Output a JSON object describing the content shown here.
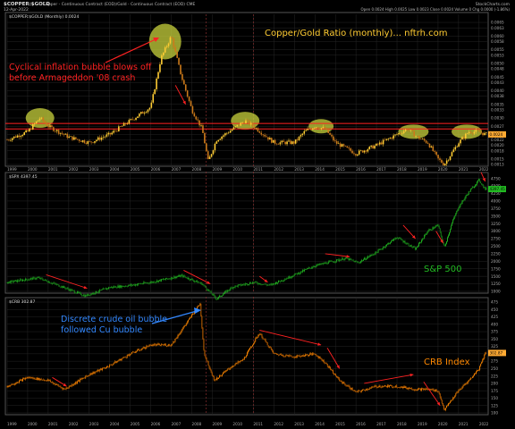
{
  "header": {
    "symbol": "$COPPER:$GOLD",
    "description": "Copper - Continuous Contract (EOD)/Gold - Continuous Contract (EOD) CME",
    "date": "12-Apr-2022",
    "ohlc": "Open 0.0024  High 0.0025  Low 0.0023  Close 0.0024  Volume 0  Chg 0.0000 (-1.86%)",
    "brand": "StockCharts.com"
  },
  "chart_data": [
    {
      "type": "line",
      "legend": "$COPPER:$GOLD (Monthly) 0.0024",
      "title": "Copper/Gold Ratio (monthly)... nftrh.com",
      "ylim": [
        0.0013,
        0.0066
      ],
      "yticks": [
        "0.0065",
        "0.0063",
        "0.0060",
        "0.0058",
        "0.0055",
        "0.0053",
        "0.0050",
        "0.0048",
        "0.0045",
        "0.0043",
        "0.0040",
        "0.0038",
        "0.0035",
        "0.0033",
        "0.0030",
        "0.0027",
        "0.0024",
        "0.0022",
        "0.0020",
        "0.0018",
        "0.0015",
        "0.0013"
      ],
      "last_value": "0.0024",
      "x": [
        1999,
        2000,
        2000.6,
        2001,
        2002,
        2003,
        2004,
        2005,
        2006,
        2006.5,
        2007,
        2007.5,
        2008,
        2008.5,
        2008.8,
        2009.2,
        2010,
        2010.6,
        2011,
        2011.5,
        2012,
        2013,
        2013.5,
        2014,
        2014.5,
        2015,
        2016,
        2017,
        2018,
        2018.5,
        2019,
        2019.5,
        2020,
        2020.3,
        2021,
        2021.5,
        2022,
        2022.3
      ],
      "values": [
        0.0022,
        0.0025,
        0.003,
        0.0027,
        0.0023,
        0.0021,
        0.0024,
        0.0029,
        0.0034,
        0.0052,
        0.006,
        0.0045,
        0.0033,
        0.0026,
        0.0014,
        0.0022,
        0.0026,
        0.0029,
        0.0027,
        0.0024,
        0.0021,
        0.0021,
        0.0025,
        0.0027,
        0.0026,
        0.0021,
        0.0017,
        0.002,
        0.0024,
        0.0026,
        0.0023,
        0.0021,
        0.0015,
        0.0013,
        0.0021,
        0.0025,
        0.0025,
        0.0024
      ],
      "annotations": [
        "Cyclical inflation bubble blows off before Armageddon '08 crash"
      ]
    },
    {
      "type": "line",
      "legend": "$SPX 4397.45",
      "title": "S&P 500",
      "ylim": [
        1000,
        4800
      ],
      "yticks": [
        "4750",
        "4500",
        "4250",
        "4000",
        "3750",
        "3500",
        "3250",
        "3000",
        "2750",
        "2500",
        "2250",
        "2000",
        "1750",
        "1500",
        "1250",
        "1000"
      ],
      "last_value": "4397.45",
      "x": [
        1999,
        2000.5,
        2001.5,
        2002.8,
        2004,
        2005,
        2006,
        2007.5,
        2008.5,
        2009.2,
        2010,
        2011,
        2011.8,
        2012.5,
        2014,
        2015.5,
        2016.1,
        2017,
        2018,
        2018.9,
        2019.5,
        2020,
        2020.3,
        2020.7,
        2021,
        2021.5,
        2022,
        2022.3
      ],
      "values": [
        1300,
        1450,
        1200,
        850,
        1130,
        1200,
        1300,
        1520,
        1250,
        750,
        1150,
        1300,
        1200,
        1400,
        1850,
        2100,
        1950,
        2300,
        2800,
        2400,
        3000,
        3200,
        2450,
        3300,
        3800,
        4300,
        4700,
        4397
      ]
    },
    {
      "type": "line",
      "legend": "$CRB 302.87",
      "title": "CRB Index",
      "ylim": [
        100,
        475
      ],
      "yticks": [
        "475",
        "450",
        "425",
        "400",
        "375",
        "350",
        "325",
        "300",
        "275",
        "250",
        "225",
        "200",
        "175",
        "150",
        "125",
        "100"
      ],
      "last_value": "302.87",
      "x": [
        1999,
        2000,
        2001,
        2001.8,
        2003,
        2004,
        2005,
        2006,
        2007,
        2008.4,
        2008.6,
        2009.1,
        2010,
        2010.5,
        2011.3,
        2012,
        2013,
        2014,
        2014.5,
        2015.2,
        2016,
        2017,
        2018,
        2018.9,
        2019.5,
        2020,
        2020.3,
        2021,
        2021.5,
        2022,
        2022.3
      ],
      "values": [
        190,
        220,
        210,
        180,
        230,
        260,
        300,
        330,
        330,
        470,
        300,
        210,
        260,
        280,
        370,
        300,
        290,
        300,
        270,
        210,
        170,
        190,
        190,
        180,
        180,
        175,
        110,
        175,
        210,
        250,
        302.87
      ],
      "annotations": [
        "Discrete crude oil bubble followed Cu bubble"
      ]
    }
  ],
  "x_axis": {
    "ticks": [
      "1999",
      "2000",
      "2001",
      "2002",
      "2003",
      "2004",
      "2005",
      "2006",
      "2007",
      "2008",
      "2009",
      "2010",
      "2011",
      "2012",
      "2013",
      "2014",
      "2015",
      "2016",
      "2017",
      "2018",
      "2019",
      "2020",
      "2021",
      "2022"
    ]
  },
  "colors": {
    "background": "#000000",
    "panel_border": "#555555",
    "ratio_up": "#ffcc33",
    "ratio_down": "#cc7a1a",
    "spx": "#22bb22",
    "crb": "#ff8800",
    "resistance": "#ff2222",
    "arrow": "#ff2222",
    "annotation_red": "#ff2222",
    "annotation_blue": "#3388ff",
    "highlight": "#c8d23c",
    "title_gold": "#ffcc33",
    "label_green": "#22bb22",
    "label_orange": "#ff8800"
  }
}
